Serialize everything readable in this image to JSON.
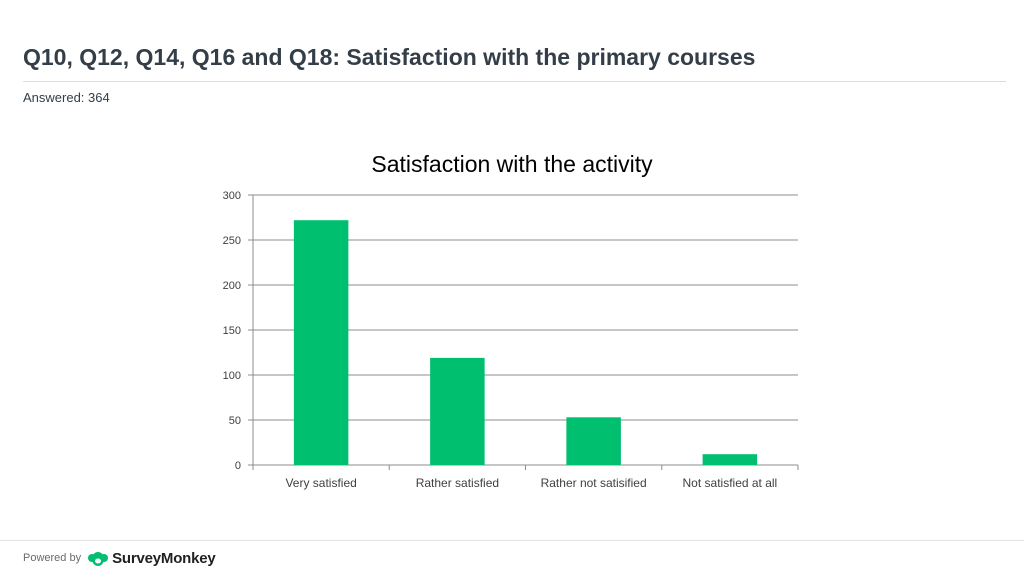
{
  "header": {
    "title": "Q10, Q12, Q14, Q16 and Q18: Satisfaction with the primary courses",
    "answered": "Answered: 364"
  },
  "footer": {
    "powered_by": "Powered by",
    "brand": "SurveyMonkey",
    "brand_icon": "surveymonkey-logo-icon",
    "brand_color": "#00bf6f"
  },
  "chart_data": {
    "type": "bar",
    "title": "Satisfaction with the activity",
    "categories": [
      "Very satisfied",
      "Rather satisfied",
      "Rather not satisified",
      "Not satisfied at all"
    ],
    "values": [
      272,
      119,
      53,
      12
    ],
    "ylim": [
      0,
      300
    ],
    "yticks": [
      0,
      50,
      100,
      150,
      200,
      250,
      300
    ],
    "xlabel": "",
    "ylabel": "",
    "grid": true,
    "bar_color": "#00bf6f"
  }
}
